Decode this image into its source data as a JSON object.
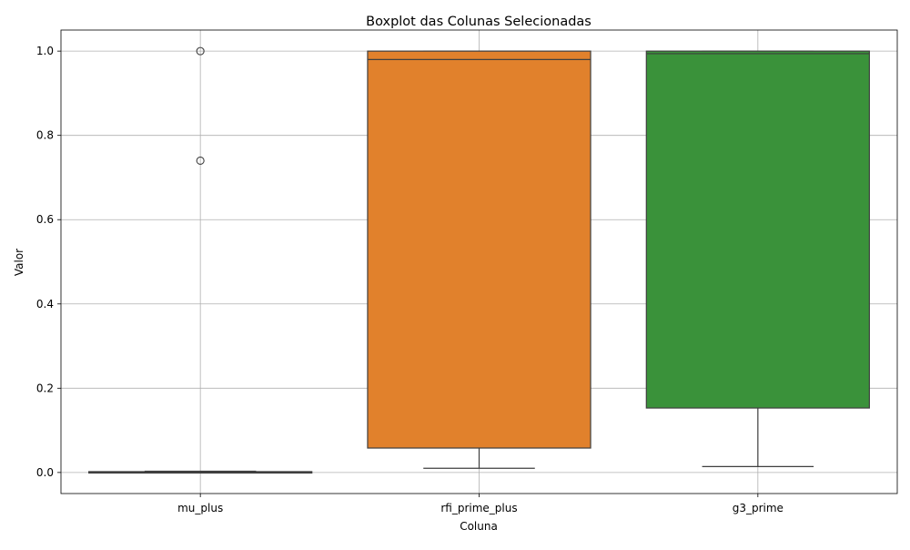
{
  "chart_data": {
    "type": "box",
    "title": "Boxplot das Colunas Selecionadas",
    "xlabel": "Coluna",
    "ylabel": "Valor",
    "ylim": [
      -0.05,
      1.05
    ],
    "yticks": [
      0.0,
      0.2,
      0.4,
      0.6,
      0.8,
      1.0
    ],
    "ytick_labels": [
      "0.0",
      "0.2",
      "0.4",
      "0.6",
      "0.8",
      "1.0"
    ],
    "grid": true,
    "categories": [
      "mu_plus",
      "rfi_prime_plus",
      "g3_prime"
    ],
    "boxes": [
      {
        "category": "mu_plus",
        "color": "#1f77b4",
        "whisker_low": 0.0,
        "q1": 0.0,
        "median": 0.001,
        "q3": 0.002,
        "whisker_high": 0.003,
        "outliers": [
          0.74,
          1.0
        ]
      },
      {
        "category": "rfi_prime_plus",
        "color": "#e1812c",
        "whisker_low": 0.01,
        "q1": 0.058,
        "median": 0.98,
        "q3": 1.0,
        "whisker_high": 1.0,
        "outliers": []
      },
      {
        "category": "g3_prime",
        "color": "#3a923a",
        "whisker_low": 0.014,
        "q1": 0.153,
        "median": 0.994,
        "q3": 1.0,
        "whisker_high": 1.0,
        "outliers": []
      }
    ]
  }
}
